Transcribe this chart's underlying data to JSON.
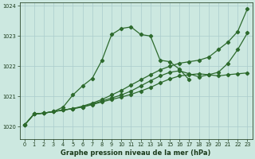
{
  "xlabel": "Graphe pression niveau de la mer (hPa)",
  "background_color": "#cce8e0",
  "grid_color": "#aacccc",
  "line_color": "#2d6a2d",
  "xlim": [
    -0.5,
    23.5
  ],
  "ylim": [
    1019.6,
    1024.1
  ],
  "yticks": [
    1020,
    1021,
    1022,
    1023,
    1024
  ],
  "xticks": [
    0,
    1,
    2,
    3,
    4,
    5,
    6,
    7,
    8,
    9,
    10,
    11,
    12,
    13,
    14,
    15,
    16,
    17,
    18,
    19,
    20,
    21,
    22,
    23
  ],
  "line_steep_x": [
    0,
    1,
    2,
    3,
    4,
    5,
    6,
    7,
    8,
    9,
    10,
    11,
    12,
    13,
    14,
    15,
    16,
    17
  ],
  "line_steep_y": [
    1020.05,
    1020.42,
    1020.45,
    1020.5,
    1020.65,
    1021.05,
    1021.35,
    1021.6,
    1022.2,
    1023.05,
    1023.25,
    1023.3,
    1023.05,
    1023.0,
    1022.2,
    1022.15,
    1021.9,
    1021.55
  ],
  "line_top_x": [
    0,
    1,
    2,
    3,
    4,
    5,
    6,
    7,
    8,
    9,
    10,
    11,
    12,
    13,
    14,
    15,
    16,
    17,
    18,
    19,
    20,
    21,
    22,
    23
  ],
  "line_top_y": [
    1020.05,
    1020.42,
    1020.45,
    1020.5,
    1020.55,
    1020.6,
    1020.68,
    1020.78,
    1020.9,
    1021.05,
    1021.2,
    1021.38,
    1021.55,
    1021.72,
    1021.88,
    1022.0,
    1022.1,
    1022.15,
    1022.2,
    1022.3,
    1022.55,
    1022.8,
    1023.15,
    1023.9
  ],
  "line_mid_x": [
    0,
    1,
    2,
    3,
    4,
    5,
    6,
    7,
    8,
    9,
    10,
    11,
    12,
    13,
    14,
    15,
    16,
    17,
    18,
    19,
    20,
    21,
    22,
    23
  ],
  "line_mid_y": [
    1020.05,
    1020.42,
    1020.45,
    1020.5,
    1020.55,
    1020.6,
    1020.65,
    1020.75,
    1020.85,
    1020.95,
    1021.05,
    1021.18,
    1021.35,
    1021.52,
    1021.68,
    1021.8,
    1021.85,
    1021.75,
    1021.65,
    1021.72,
    1021.8,
    1022.1,
    1022.55,
    1023.1
  ],
  "line_flat_x": [
    0,
    1,
    2,
    3,
    4,
    5,
    6,
    7,
    8,
    9,
    10,
    11,
    12,
    13,
    14,
    15,
    16,
    17,
    18,
    19,
    20,
    21,
    22,
    23
  ],
  "line_flat_y": [
    1020.05,
    1020.42,
    1020.45,
    1020.5,
    1020.55,
    1020.6,
    1020.65,
    1020.73,
    1020.82,
    1020.9,
    1020.98,
    1021.07,
    1021.18,
    1021.3,
    1021.45,
    1021.58,
    1021.68,
    1021.72,
    1021.75,
    1021.72,
    1021.68,
    1021.72,
    1021.75,
    1021.78
  ]
}
